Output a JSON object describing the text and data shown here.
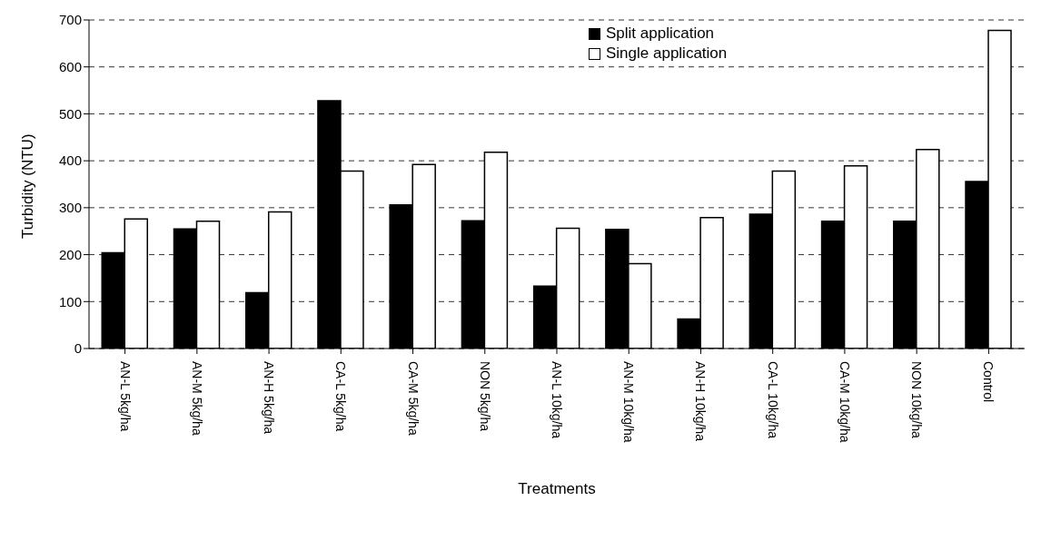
{
  "chart_data": {
    "type": "bar",
    "xlabel": "Treatments",
    "ylabel": "Turbidity (NTU)",
    "categories": [
      "AN-L 5kg/ha",
      "AN-M 5kg/ha",
      "AN-H 5kg/ha",
      "CA-L 5kg/ha",
      "CA-M 5kg/ha",
      "NON 5kg/ha",
      "AN-L 10kg/ha",
      "AN-M 10kg/ha",
      "AN-H 10kg/ha",
      "CA-L 10kg/ha",
      "CA-M 10kg/ha",
      "NON 10kg/ha",
      "Control"
    ],
    "series": [
      {
        "name": "Split application",
        "color": "#000000",
        "values": [
          204,
          255,
          119,
          528,
          306,
          272,
          133,
          254,
          63,
          286,
          271,
          271,
          356
        ]
      },
      {
        "name": "Single application",
        "color": "#ffffff",
        "values": [
          276,
          271,
          291,
          378,
          392,
          418,
          256,
          181,
          279,
          378,
          389,
          424,
          678
        ]
      }
    ],
    "ylim": [
      0,
      700
    ],
    "yticks": [
      0,
      100,
      200,
      300,
      400,
      500,
      600,
      700
    ],
    "grid": "y",
    "legend": "top right"
  }
}
